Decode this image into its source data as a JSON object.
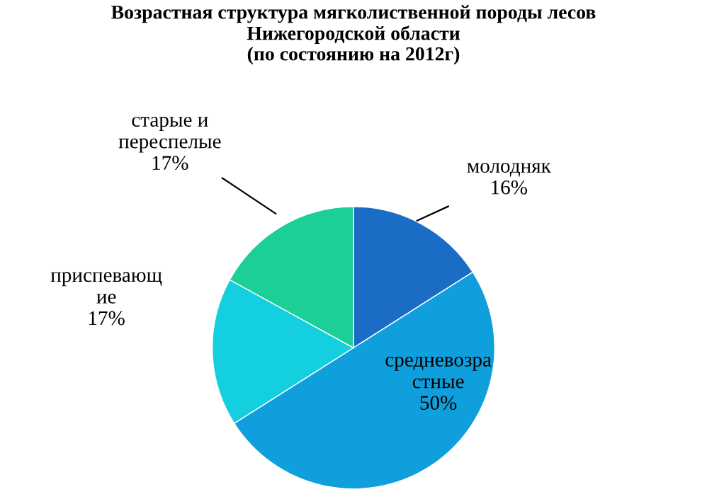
{
  "chart_data": {
    "type": "pie",
    "title": "Возрастная структура мягколиственной породы лесов\nНижегородской области\n(по состоянию на 2012г)",
    "categories": [
      "молодняк",
      "средневозра\nстные",
      "приспевающ\nие",
      "старые и\nпереспелые"
    ],
    "values": [
      16,
      50,
      17,
      17
    ],
    "value_labels": [
      "16%",
      "50%",
      "17%",
      "17%"
    ],
    "colors": [
      "#1a6cc4",
      "#0f9fdc",
      "#14cfdf",
      "#1ccf96"
    ],
    "legend": false
  }
}
